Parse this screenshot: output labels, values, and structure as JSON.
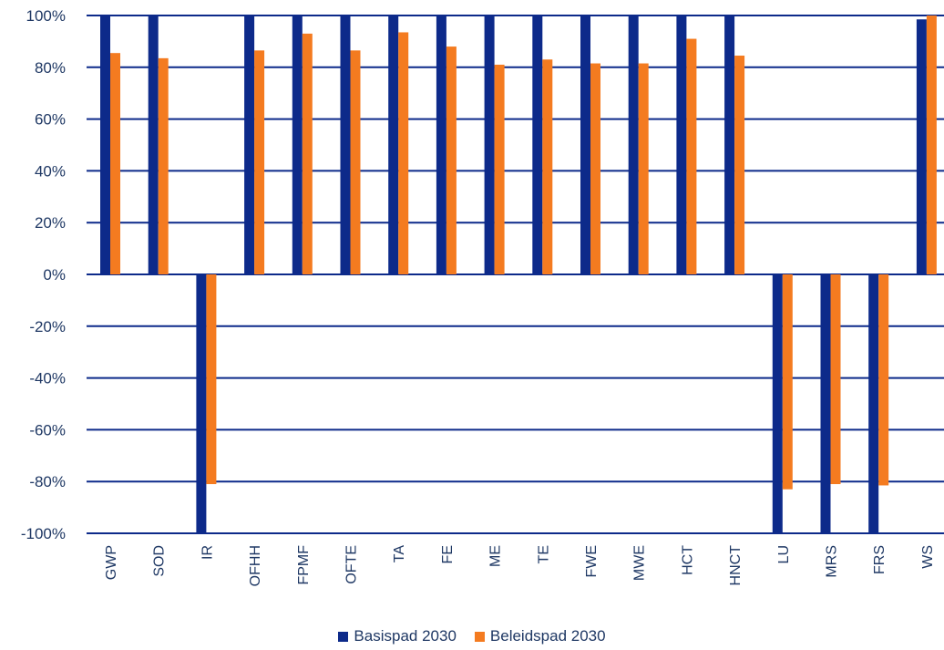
{
  "chart_data": {
    "type": "bar",
    "categories": [
      "GWP",
      "SOD",
      "IR",
      "OFHH",
      "FPMF",
      "OFTE",
      "TA",
      "FE",
      "ME",
      "TE",
      "FWE",
      "MWE",
      "HCT",
      "HNCT",
      "LU",
      "MRS",
      "FRS",
      "WS"
    ],
    "series": [
      {
        "name": "Basispad 2030",
        "color": "#0d2a8a",
        "values": [
          100,
          100,
          -100,
          100,
          100,
          100,
          100,
          100,
          100,
          100,
          100,
          100,
          100,
          100,
          -100,
          -100,
          -100,
          98.5
        ]
      },
      {
        "name": "Beleidspad 2030",
        "color": "#f47b20",
        "values": [
          85.5,
          83.5,
          -81,
          86.5,
          93,
          86.5,
          93.5,
          88,
          81,
          83,
          81.5,
          81.5,
          91,
          84.5,
          -83,
          -81,
          -81.5,
          100
        ]
      }
    ],
    "y_ticks": [
      "100%",
      "80%",
      "60%",
      "40%",
      "20%",
      "0%",
      "-20%",
      "-40%",
      "-60%",
      "-80%",
      "-100%"
    ],
    "ylim": [
      -100,
      100
    ],
    "grid": true,
    "legend_position": "bottom"
  }
}
